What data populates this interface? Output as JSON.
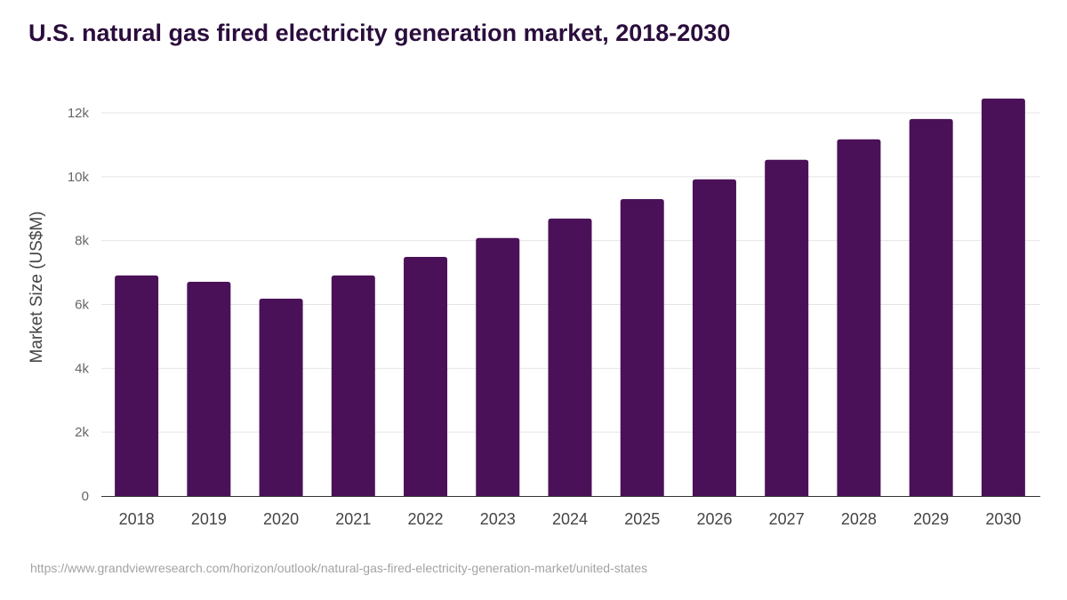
{
  "chart_data": {
    "type": "bar",
    "title": "U.S. natural gas fired electricity generation market, 2018-2030",
    "xlabel": "",
    "ylabel": "Market Size (US$M)",
    "categories": [
      "2018",
      "2019",
      "2020",
      "2021",
      "2022",
      "2023",
      "2024",
      "2025",
      "2026",
      "2027",
      "2028",
      "2029",
      "2030"
    ],
    "values": [
      6910,
      6710,
      6180,
      6910,
      7490,
      8080,
      8690,
      9300,
      9920,
      10530,
      11170,
      11810,
      12450
    ],
    "ylim": [
      0,
      12000
    ],
    "yticks": [
      0,
      2000,
      4000,
      6000,
      8000,
      10000,
      12000
    ],
    "ytick_labels": [
      "0",
      "2k",
      "4k",
      "6k",
      "8k",
      "10k",
      "12k"
    ],
    "grid": true,
    "bar_color": "#4b1158"
  },
  "source": "https://www.grandviewresearch.com/horizon/outlook/natural-gas-fired-electricity-generation-market/united-states"
}
